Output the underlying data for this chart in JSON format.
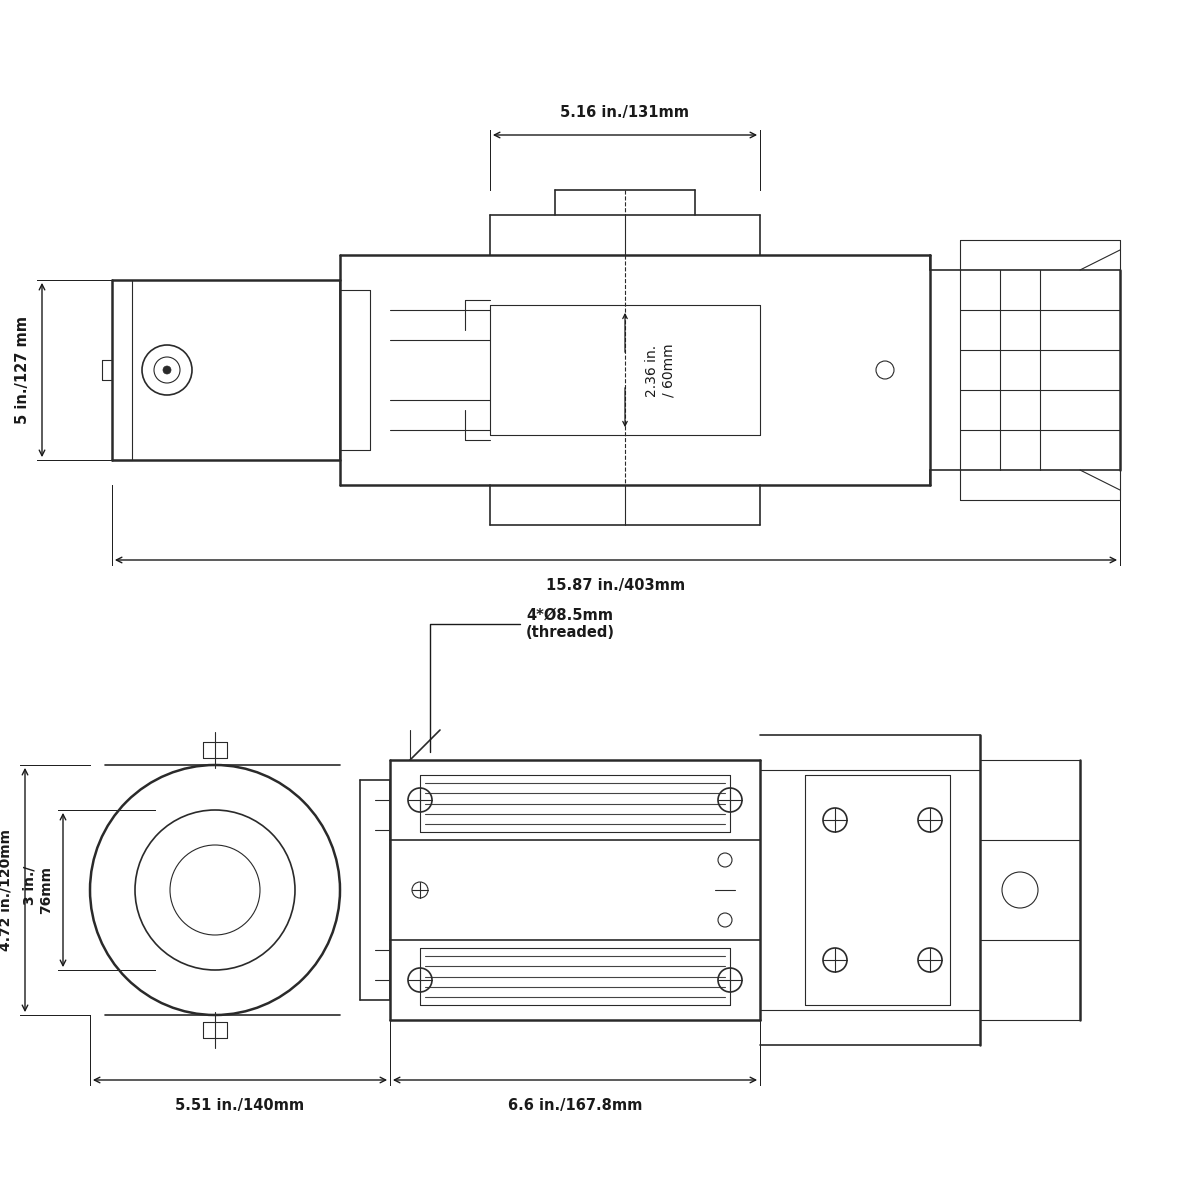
{
  "background_color": "#ffffff",
  "line_color": "#2a2a2a",
  "dim_color": "#1a1a1a",
  "fig_width": 12,
  "fig_height": 12,
  "top_view": {
    "dim_top_width_label": "5.16 in./131mm",
    "dim_total_width_label": "15.87 in./403mm",
    "dim_height_label": "5 in./127 mm",
    "dim_drum_label": "2.36 in.\n/ 60mm"
  },
  "bottom_view": {
    "dim_outer_height_label": "4.72 in./120mm",
    "dim_inner_height_label": "3 in./\n76mm",
    "dim_motor_width_label": "5.51 in./140mm",
    "dim_drum_width_label": "6.6 in./167.8mm",
    "note_label": "4*Ø8.5mm\n(threaded)"
  }
}
